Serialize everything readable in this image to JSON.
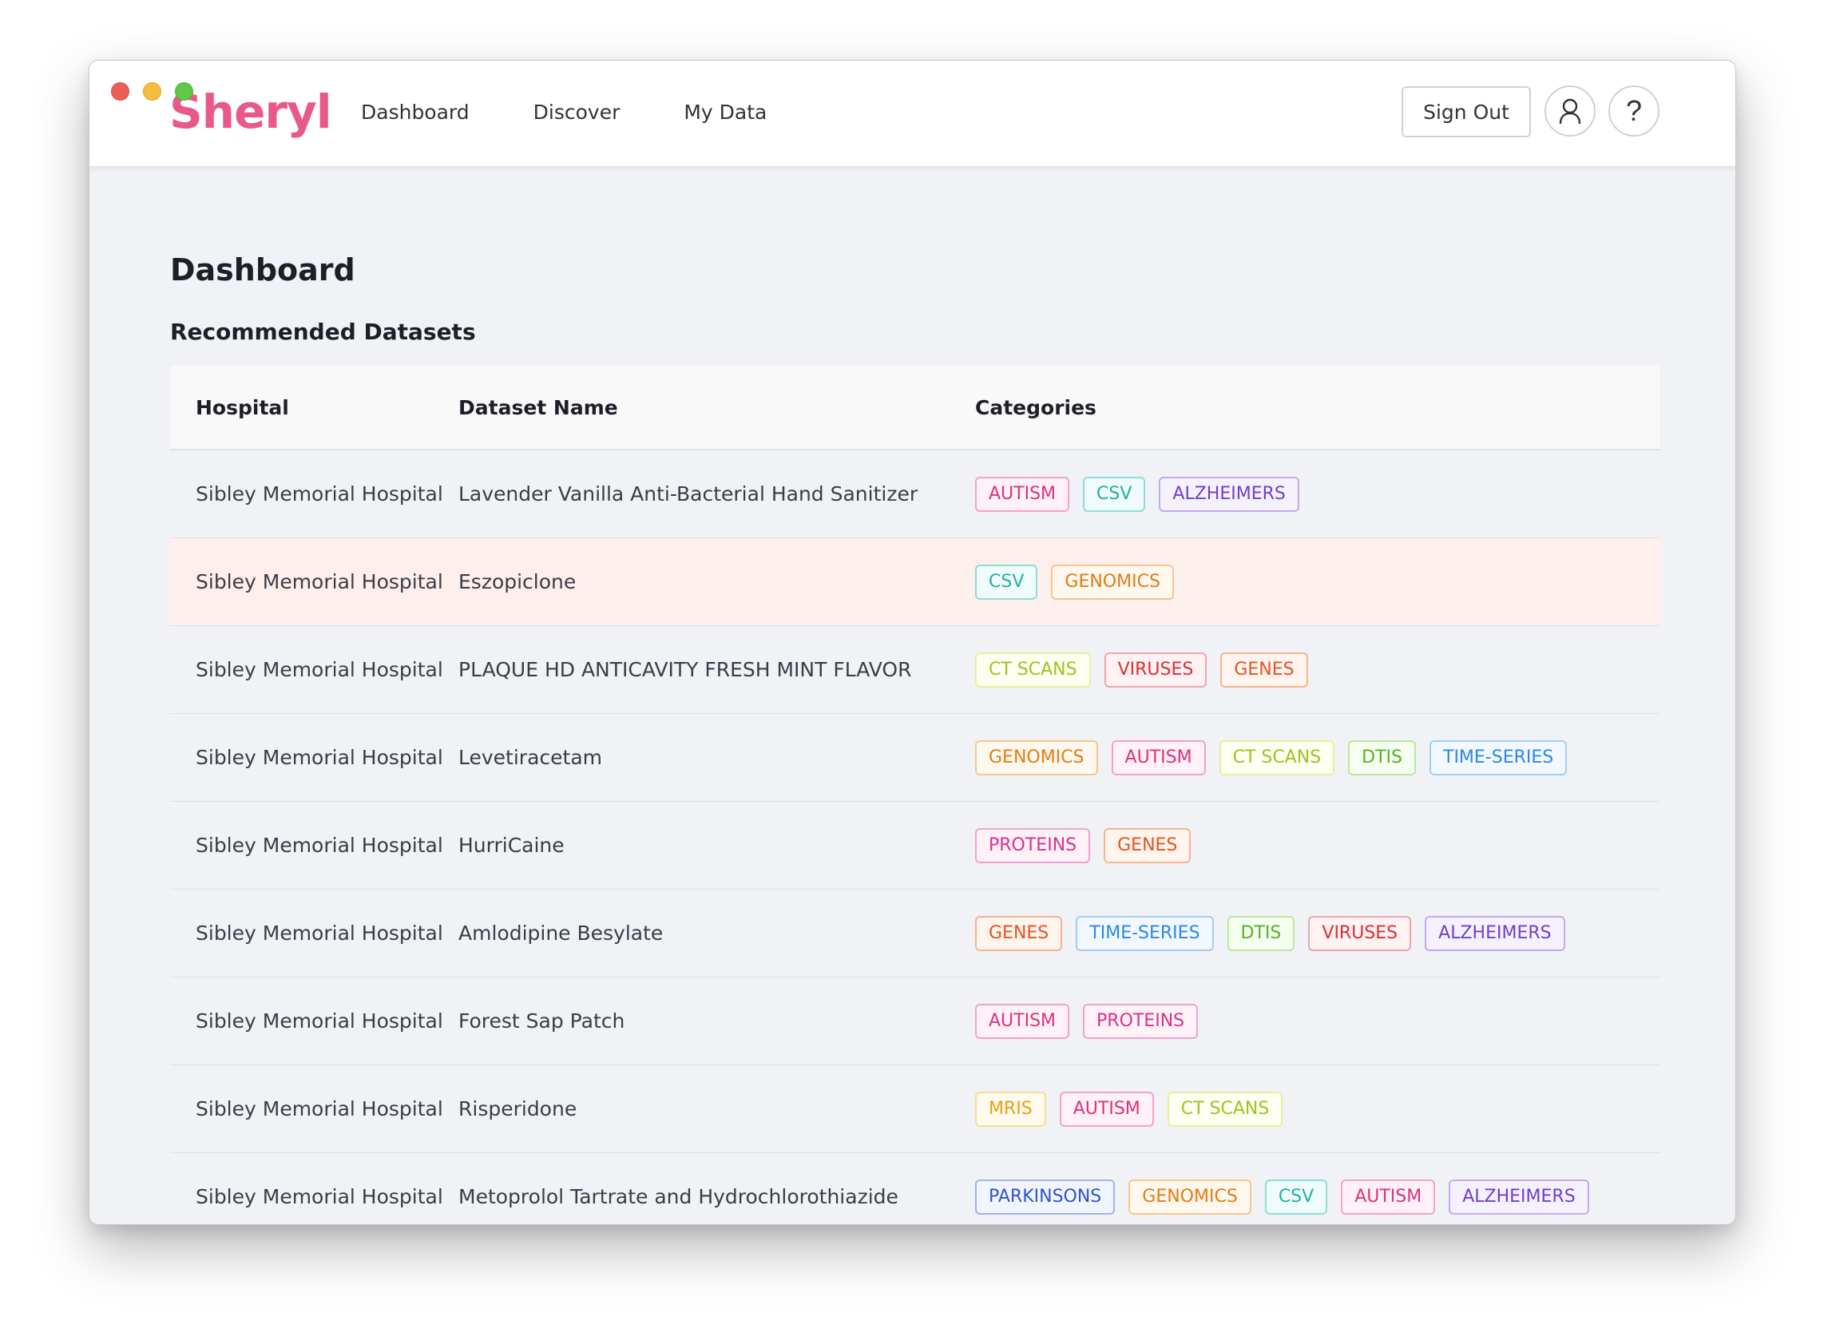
{
  "app": {
    "logo": "Sheryl"
  },
  "nav": {
    "items": [
      "Dashboard",
      "Discover",
      "My Data"
    ]
  },
  "header": {
    "sign_out": "Sign Out",
    "help": "?"
  },
  "page": {
    "title": "Dashboard",
    "section_title": "Recommended Datasets"
  },
  "table": {
    "columns": [
      "Hospital",
      "Dataset Name",
      "Categories"
    ],
    "rows": [
      {
        "hospital": "Sibley Memorial Hospital",
        "dataset": "Lavender Vanilla Anti-Bacterial Hand Sanitizer",
        "categories": [
          "AUTISM",
          "CSV",
          "ALZHEIMERS"
        ],
        "highlighted": false
      },
      {
        "hospital": "Sibley Memorial Hospital",
        "dataset": "Eszopiclone",
        "categories": [
          "CSV",
          "GENOMICS"
        ],
        "highlighted": true
      },
      {
        "hospital": "Sibley Memorial Hospital",
        "dataset": "PLAQUE HD ANTICAVITY FRESH MINT FLAVOR",
        "categories": [
          "CT SCANS",
          "VIRUSES",
          "GENES"
        ],
        "highlighted": false
      },
      {
        "hospital": "Sibley Memorial Hospital",
        "dataset": "Levetiracetam",
        "categories": [
          "GENOMICS",
          "AUTISM",
          "CT SCANS",
          "DTIS",
          "TIME-SERIES"
        ],
        "highlighted": false
      },
      {
        "hospital": "Sibley Memorial Hospital",
        "dataset": "HurriCaine",
        "categories": [
          "PROTEINS",
          "GENES"
        ],
        "highlighted": false
      },
      {
        "hospital": "Sibley Memorial Hospital",
        "dataset": "Amlodipine Besylate",
        "categories": [
          "GENES",
          "TIME-SERIES",
          "DTIS",
          "VIRUSES",
          "ALZHEIMERS"
        ],
        "highlighted": false
      },
      {
        "hospital": "Sibley Memorial Hospital",
        "dataset": "Forest Sap Patch",
        "categories": [
          "AUTISM",
          "PROTEINS"
        ],
        "highlighted": false
      },
      {
        "hospital": "Sibley Memorial Hospital",
        "dataset": "Risperidone",
        "categories": [
          "MRIS",
          "AUTISM",
          "CT SCANS"
        ],
        "highlighted": false
      },
      {
        "hospital": "Sibley Memorial Hospital",
        "dataset": "Metoprolol Tartrate and Hydrochlorothiazide",
        "categories": [
          "PARKINSONS",
          "GENOMICS",
          "CSV",
          "AUTISM",
          "ALZHEIMERS"
        ],
        "highlighted": false
      }
    ]
  },
  "category_colors": {
    "AUTISM": {
      "text": "#d6347f",
      "border": "#f3a2c7",
      "bg": "#fff1f7"
    },
    "CSV": {
      "text": "#22b0a6",
      "border": "#8fdcd6",
      "bg": "#f0fcfb"
    },
    "ALZHEIMERS": {
      "text": "#6f3fd0",
      "border": "#c3aaf0",
      "bg": "#f6f1ff"
    },
    "GENOMICS": {
      "text": "#e27c14",
      "border": "#f8c68f",
      "bg": "#fff8ef"
    },
    "CT SCANS": {
      "text": "#9fc322",
      "border": "#e3f19c",
      "bg": "#fdfff0"
    },
    "VIRUSES": {
      "text": "#da2f35",
      "border": "#f3a5a6",
      "bg": "#fff2f2"
    },
    "GENES": {
      "text": "#e2551f",
      "border": "#f7b392",
      "bg": "#fff4ee"
    },
    "DTIS": {
      "text": "#58b027",
      "border": "#bde69f",
      "bg": "#f5fff0"
    },
    "TIME-SERIES": {
      "text": "#2f86e4",
      "border": "#a2cdf6",
      "bg": "#f1f8ff"
    },
    "PROTEINS": {
      "text": "#d6348b",
      "border": "#f3a2cf",
      "bg": "#fff1f8"
    },
    "MRIS": {
      "text": "#e6a115",
      "border": "#f6db95",
      "bg": "#fffaee"
    },
    "PARKINSONS": {
      "text": "#2f55c8",
      "border": "#9fb3ee",
      "bg": "#f1f5ff"
    }
  }
}
